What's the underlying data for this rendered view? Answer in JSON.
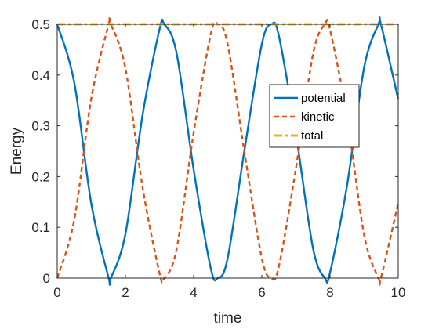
{
  "chart_data": {
    "type": "line",
    "title": "",
    "xlabel": "time",
    "ylabel": "Energy",
    "xlim": [
      0,
      10
    ],
    "ylim": [
      0,
      0.5
    ],
    "xticks": [
      "0",
      "2",
      "4",
      "6",
      "8",
      "10"
    ],
    "yticks": [
      "0",
      "0.1",
      "0.2",
      "0.3",
      "0.4",
      "0.5"
    ],
    "grid": false,
    "legend_position": "upper right, inside",
    "series": [
      {
        "name": "potential",
        "color": "#0072BD",
        "style": "solid",
        "x": [
          0,
          0.5,
          1,
          1.5,
          1.57,
          2,
          2.5,
          3,
          3.14,
          3.5,
          4,
          4.5,
          4.71,
          5,
          5.5,
          6,
          6.28,
          6.5,
          7,
          7.5,
          7.85,
          8,
          8.5,
          9,
          9.42,
          9.5,
          10
        ],
        "y": [
          0.5,
          0.385,
          0.146,
          0.0025,
          0,
          0.087,
          0.32,
          0.49,
          0.5,
          0.443,
          0.214,
          0.02,
          0,
          0.04,
          0.256,
          0.461,
          0.5,
          0.477,
          0.284,
          0.059,
          0,
          0.011,
          0.183,
          0.415,
          0.5,
          0.498,
          0.352
        ]
      },
      {
        "name": "kinetic",
        "color": "#D95319",
        "style": "dashed",
        "x": [
          0,
          0.5,
          1,
          1.5,
          1.57,
          2,
          2.5,
          3,
          3.14,
          3.5,
          4,
          4.5,
          4.71,
          5,
          5.5,
          6,
          6.28,
          6.5,
          7,
          7.5,
          7.85,
          8,
          8.5,
          9,
          9.42,
          9.5,
          10
        ],
        "y": [
          0,
          0.115,
          0.354,
          0.4975,
          0.5,
          0.413,
          0.18,
          0.01,
          0,
          0.057,
          0.286,
          0.48,
          0.5,
          0.46,
          0.244,
          0.039,
          0,
          0.023,
          0.216,
          0.441,
          0.5,
          0.489,
          0.317,
          0.085,
          0,
          0.002,
          0.148
        ]
      },
      {
        "name": "total",
        "color": "#EDB120",
        "style": "dash-dot",
        "x": [
          0,
          10
        ],
        "y": [
          0.5,
          0.5
        ]
      }
    ]
  }
}
